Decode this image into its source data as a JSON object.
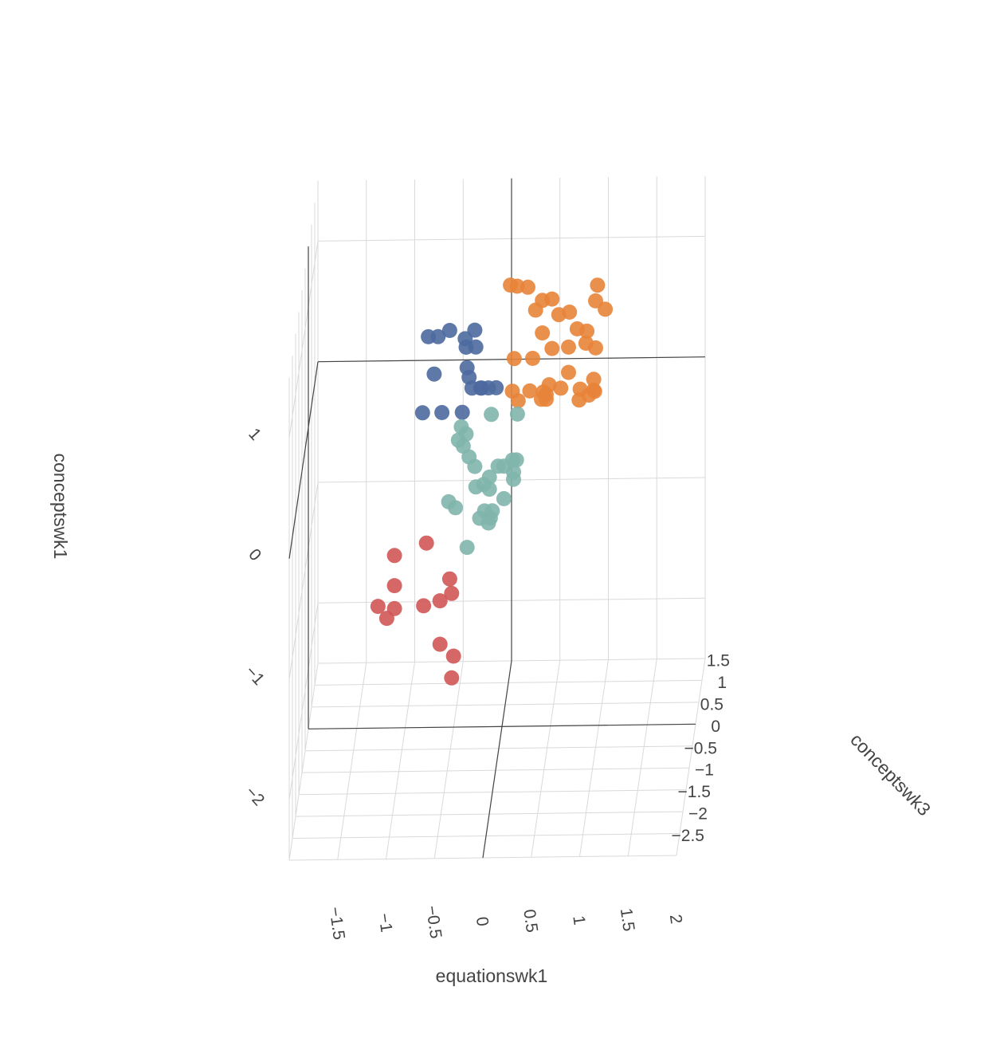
{
  "chart_data": {
    "type": "scatter",
    "title": "",
    "axes": {
      "x": {
        "title": "equationswk1",
        "range": [
          -2,
          2
        ],
        "ticks": [
          "−1.5",
          "−1",
          "−0.5",
          "0",
          "0.5",
          "1",
          "1.5",
          "2"
        ]
      },
      "y": {
        "title": "conceptswk3",
        "range": [
          -3,
          1.5
        ],
        "ticks": [
          "1.5",
          "1",
          "0.5",
          "0",
          "−0.5",
          "−1",
          "−1.5",
          "−2",
          "−2.5"
        ]
      },
      "z": {
        "title": "conceptswk1",
        "range": [
          -2.5,
          1.5
        ],
        "ticks": [
          "1",
          "0",
          "−1",
          "−2"
        ]
      }
    },
    "grid": true,
    "legend": "none",
    "colors": {
      "cluster1": "#4C6A9E",
      "cluster2": "#E8843A",
      "cluster3": "#7FB5AC",
      "cluster4": "#D05757"
    },
    "series": [
      {
        "color": "#4C6A9E",
        "points": [
          [
            -0.78,
            0.3,
            0.63
          ],
          [
            -0.68,
            0.3,
            0.63
          ],
          [
            -0.56,
            0.3,
            0.68
          ],
          [
            -0.4,
            0.3,
            0.61
          ],
          [
            -0.3,
            0.3,
            0.68
          ],
          [
            -0.39,
            0.3,
            0.54
          ],
          [
            -0.29,
            0.3,
            0.54
          ],
          [
            -0.72,
            0.3,
            0.32
          ],
          [
            -0.38,
            0.3,
            0.37
          ],
          [
            -0.36,
            0.3,
            0.29
          ],
          [
            -0.33,
            0.3,
            0.2
          ],
          [
            -0.24,
            0.3,
            0.2
          ],
          [
            -0.16,
            0.3,
            0.2
          ],
          [
            -0.08,
            0.3,
            0.2
          ],
          [
            -0.84,
            0.3,
            0.0
          ],
          [
            -0.64,
            0.3,
            0.0
          ],
          [
            -0.43,
            0.3,
            0.0
          ],
          [
            -0.23,
            0.3,
            0.2
          ]
        ]
      },
      {
        "color": "#E8843A",
        "points": [
          [
            0.12,
            -0.5,
            1.34
          ],
          [
            0.19,
            -0.5,
            1.33
          ],
          [
            0.3,
            -0.5,
            1.32
          ],
          [
            0.45,
            -0.5,
            1.21
          ],
          [
            0.55,
            -0.5,
            1.22
          ],
          [
            0.38,
            -0.5,
            1.13
          ],
          [
            0.62,
            -0.5,
            1.09
          ],
          [
            0.73,
            -0.5,
            1.11
          ],
          [
            1.02,
            -0.5,
            1.33
          ],
          [
            1.0,
            -0.5,
            1.2
          ],
          [
            1.1,
            -0.5,
            1.13
          ],
          [
            0.45,
            -0.5,
            0.94
          ],
          [
            0.81,
            -0.5,
            0.97
          ],
          [
            0.9,
            -0.5,
            0.85
          ],
          [
            0.91,
            -0.5,
            0.95
          ],
          [
            1.0,
            -0.5,
            0.81
          ],
          [
            0.55,
            -0.5,
            0.81
          ],
          [
            0.72,
            -0.5,
            0.82
          ],
          [
            0.16,
            -0.5,
            0.73
          ],
          [
            0.35,
            -0.5,
            0.73
          ],
          [
            0.72,
            -0.5,
            0.61
          ],
          [
            0.98,
            -0.5,
            0.55
          ],
          [
            0.14,
            -0.5,
            0.46
          ],
          [
            0.32,
            -0.5,
            0.46
          ],
          [
            0.46,
            -0.5,
            0.45
          ],
          [
            0.52,
            -0.5,
            0.51
          ],
          [
            0.64,
            -0.5,
            0.48
          ],
          [
            0.99,
            -0.5,
            0.45
          ],
          [
            0.2,
            -0.5,
            0.38
          ],
          [
            0.44,
            -0.5,
            0.39
          ],
          [
            0.49,
            -0.5,
            0.39
          ],
          [
            0.83,
            -0.5,
            0.38
          ],
          [
            0.93,
            -0.5,
            0.42
          ],
          [
            0.98,
            -0.5,
            0.46
          ],
          [
            0.84,
            -0.5,
            0.47
          ],
          [
            0.49,
            -0.5,
            0.43
          ]
        ]
      },
      {
        "color": "#7FB5AC",
        "points": [
          [
            -0.13,
            0.3,
            -0.02
          ],
          [
            0.14,
            0.3,
            -0.02
          ],
          [
            -0.44,
            0.3,
            -0.12
          ],
          [
            -0.39,
            0.3,
            -0.18
          ],
          [
            -0.47,
            0.3,
            -0.23
          ],
          [
            -0.42,
            0.3,
            -0.28
          ],
          [
            -0.36,
            0.3,
            -0.37
          ],
          [
            -0.3,
            0.3,
            -0.45
          ],
          [
            -0.15,
            0.3,
            -0.54
          ],
          [
            -0.06,
            0.3,
            -0.45
          ],
          [
            0.0,
            0.3,
            -0.45
          ],
          [
            0.13,
            0.3,
            -0.4
          ],
          [
            0.09,
            0.3,
            -0.4
          ],
          [
            0.1,
            0.3,
            -0.5
          ],
          [
            0.1,
            0.3,
            -0.56
          ],
          [
            -0.21,
            0.3,
            -0.6
          ],
          [
            -0.29,
            0.3,
            -0.62
          ],
          [
            -0.15,
            0.3,
            -0.64
          ],
          [
            -0.57,
            0.3,
            -0.74
          ],
          [
            -0.5,
            0.3,
            -0.79
          ],
          [
            0.0,
            0.3,
            -0.72
          ],
          [
            -0.2,
            0.3,
            -0.82
          ],
          [
            -0.12,
            0.3,
            -0.82
          ],
          [
            -0.25,
            0.3,
            -0.88
          ],
          [
            -0.14,
            0.3,
            -0.88
          ],
          [
            -0.16,
            0.3,
            -0.92
          ],
          [
            -0.38,
            0.3,
            -1.12
          ]
        ]
      },
      {
        "color": "#D05757",
        "points": [
          [
            -0.8,
            0.3,
            -1.08
          ],
          [
            -1.13,
            0.3,
            -1.18
          ],
          [
            -0.56,
            0.3,
            -1.38
          ],
          [
            -1.13,
            0.3,
            -1.43
          ],
          [
            -0.54,
            0.3,
            -1.5
          ],
          [
            -0.66,
            0.3,
            -1.56
          ],
          [
            -0.83,
            0.3,
            -1.6
          ],
          [
            -1.3,
            0.3,
            -1.6
          ],
          [
            -1.13,
            0.3,
            -1.62
          ],
          [
            -1.21,
            0.3,
            -1.7
          ],
          [
            -0.66,
            0.3,
            -1.92
          ],
          [
            -0.52,
            0.3,
            -2.02
          ],
          [
            -0.54,
            0.3,
            -2.2
          ]
        ]
      }
    ]
  }
}
